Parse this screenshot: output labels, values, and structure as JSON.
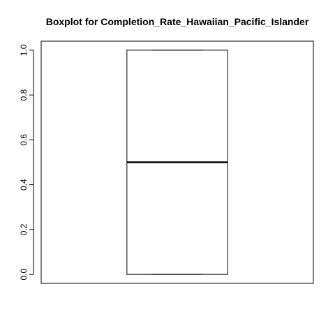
{
  "chart_data": {
    "type": "boxplot",
    "title": "Boxplot for  Completion_Rate_Hawaiian_Pacific_Islander",
    "xlabel": "",
    "ylabel": "",
    "ylim": [
      -0.04,
      1.04
    ],
    "yticks": [
      0.0,
      0.2,
      0.4,
      0.6,
      0.8,
      1.0
    ],
    "ytick_labels": [
      "0.0",
      "0.2",
      "0.4",
      "0.6",
      "0.8",
      "1.0"
    ],
    "grid": false,
    "legend": "none",
    "boxes": [
      {
        "min": 0.0,
        "q1": 0.0,
        "median": 0.5,
        "q3": 1.0,
        "max": 1.0
      }
    ],
    "colors": {
      "box_stroke": "#000000",
      "median_stroke": "#000000",
      "axis": "#000000",
      "background": "#ffffff"
    }
  }
}
